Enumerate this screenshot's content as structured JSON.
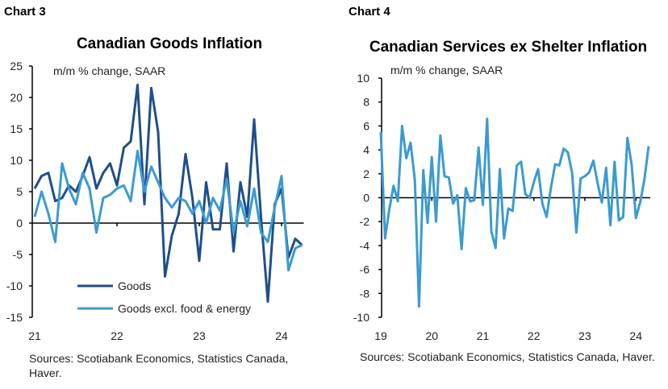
{
  "chart_data": [
    {
      "label": "Chart 3",
      "type": "line",
      "title": "Canadian Goods Inflation",
      "subtitle": "m/m % change, SAAR",
      "ylim": [
        -15,
        25
      ],
      "yticks": [
        25,
        20,
        15,
        10,
        5,
        0,
        -5,
        -10,
        -15
      ],
      "xticks": [
        "21",
        "22",
        "23",
        "24"
      ],
      "x_start": "2021-01",
      "frequency": "monthly",
      "legend_position": "bottom-left",
      "series": [
        {
          "name": "Goods",
          "color": "#1f4e8c",
          "values": [
            5.5,
            7.5,
            8,
            3.5,
            4,
            6,
            5,
            7.5,
            10.5,
            5.5,
            8,
            9.5,
            6,
            12,
            13,
            22,
            3,
            21.5,
            14.5,
            -8.5,
            -2,
            1.5,
            11,
            4,
            -6,
            6.5,
            -1,
            -1,
            9.5,
            -4.5,
            6.5,
            1,
            16.5,
            1,
            -12.5,
            3,
            5.5,
            -5.5,
            -2.5,
            -3.5
          ]
        },
        {
          "name": "Goods excl. food & energy",
          "color": "#3b9bd1",
          "values": [
            1,
            5,
            1.5,
            -3,
            9.5,
            5.5,
            3,
            8,
            5.5,
            -1.5,
            4,
            4.5,
            5.5,
            6,
            3.5,
            11.5,
            5,
            9,
            6.5,
            4,
            2.5,
            4,
            3.5,
            1.5,
            3.5,
            0,
            4,
            2,
            7,
            -1.5,
            3.5,
            -0.5,
            5.5,
            -1.5,
            -3,
            2.5,
            7.5,
            -7.5,
            -4,
            -3.5
          ]
        }
      ],
      "source": "Sources: Scotiabank Economics, Statistics Canada, Haver."
    },
    {
      "label": "Chart 4",
      "type": "line",
      "title": "Canadian Services ex Shelter Inflation",
      "subtitle": "m/m % change, SAAR",
      "ylim": [
        -10,
        10
      ],
      "yticks": [
        10,
        8,
        6,
        4,
        2,
        0,
        -2,
        -4,
        -6,
        -8,
        -10
      ],
      "xticks": [
        "19",
        "20",
        "21",
        "22",
        "23",
        "24"
      ],
      "x_start": "2019-01",
      "frequency": "monthly",
      "series": [
        {
          "color": "#3b9bd1",
          "values": [
            5.5,
            -3.4,
            -1,
            1,
            -0.3,
            6,
            3.3,
            4.6,
            1.5,
            -9.1,
            2.3,
            -2.1,
            3.4,
            -2,
            5.2,
            1.8,
            1.7,
            -0.5,
            0.2,
            -4.3,
            0.8,
            -0.3,
            -0.2,
            4.2,
            -0.6,
            6.6,
            -2.8,
            -4.2,
            2.4,
            -3.4,
            -0.9,
            -1.1,
            2.7,
            3,
            0.3,
            0,
            1.3,
            2.4,
            -0.5,
            -1.6,
            0.8,
            2.8,
            2.7,
            4.1,
            3.8,
            2.1,
            -2.9,
            1.6,
            1.8,
            2.1,
            3.1,
            1.2,
            -0.4,
            2.5,
            -2.3,
            3,
            -1.9,
            -1.6,
            5,
            2.8,
            -1.7,
            -0.4,
            1.5,
            4.3
          ]
        }
      ],
      "source": "Sources: Scotiabank Economics, Statistics Canada, Haver."
    }
  ]
}
